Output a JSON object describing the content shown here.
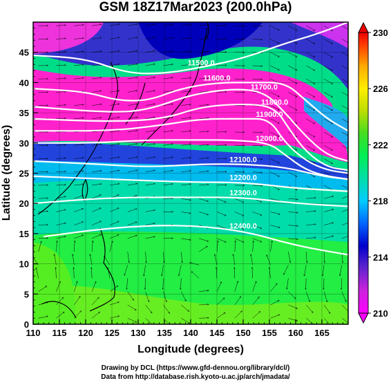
{
  "title": "GSM 18Z17Mar2023 (200.0hPa)",
  "xlabel": "Longitude (degrees)",
  "ylabel": "Latitude  (degrees)",
  "credit_line1": "Drawing by DCL (https://www.gfd-dennou.org/library/dcl/)",
  "credit_line2": "Data from http://database.rish.kyoto-u.ac.jp/arch/jmadata/",
  "chart_data": {
    "type": "heatmap",
    "description_fields": "temperature shading with geopotential height contours and wind streamlines",
    "x_ticks": [
      "110",
      "115",
      "120",
      "125",
      "130",
      "135",
      "140",
      "145",
      "150",
      "155",
      "160",
      "165"
    ],
    "y_ticks": [
      "0",
      "5",
      "10",
      "15",
      "20",
      "25",
      "30",
      "35",
      "40",
      "45"
    ],
    "xlim": [
      110,
      170
    ],
    "ylim": [
      0,
      50
    ],
    "colorbar": {
      "ticks": [
        "210",
        "214",
        "218",
        "222",
        "226",
        "230"
      ],
      "range": [
        210,
        230
      ],
      "colors": [
        "#ff00ff",
        "#ff33cc",
        "#6633cc",
        "#0000cc",
        "#0077ff",
        "#00ccff",
        "#00ddaa",
        "#00ee55",
        "#33dd33",
        "#99dd00",
        "#ffee00",
        "#ffaa00",
        "#ff5500",
        "#ee0000"
      ]
    },
    "contours": [
      {
        "label": "11500.0",
        "points": [
          [
            110,
            44.5
          ],
          [
            120,
            44
          ],
          [
            128,
            41.5
          ],
          [
            135,
            41.5
          ],
          [
            142,
            42.5
          ],
          [
            150,
            44
          ],
          [
            158,
            46.5
          ],
          [
            164,
            48
          ],
          [
            170,
            50
          ]
        ]
      },
      {
        "label": "11600.0",
        "points": [
          [
            110,
            39
          ],
          [
            120,
            38.5
          ],
          [
            126,
            37
          ],
          [
            132,
            37
          ],
          [
            138,
            39
          ],
          [
            145,
            40
          ],
          [
            152,
            40
          ],
          [
            158,
            40
          ],
          [
            162,
            37
          ],
          [
            166,
            34
          ],
          [
            170,
            32
          ]
        ]
      },
      {
        "label": "11700.0",
        "points": [
          [
            110,
            36
          ],
          [
            125,
            35
          ],
          [
            132,
            35.5
          ],
          [
            140,
            38
          ],
          [
            148,
            39
          ],
          [
            154,
            38.5
          ],
          [
            158,
            35
          ],
          [
            162,
            31
          ],
          [
            166,
            28
          ],
          [
            170,
            27
          ]
        ]
      },
      {
        "label": "11800.0",
        "points": [
          [
            110,
            34
          ],
          [
            125,
            33.5
          ],
          [
            135,
            34
          ],
          [
            142,
            36
          ],
          [
            150,
            36.5
          ],
          [
            156,
            36
          ],
          [
            159,
            32
          ],
          [
            162,
            28.5
          ],
          [
            166,
            26
          ],
          [
            170,
            25.5
          ]
        ]
      },
      {
        "label": "11900.0",
        "points": [
          [
            110,
            32
          ],
          [
            125,
            32
          ],
          [
            135,
            33
          ],
          [
            142,
            34
          ],
          [
            150,
            34
          ],
          [
            155,
            34
          ],
          [
            158,
            30
          ],
          [
            162,
            27
          ],
          [
            166,
            25.5
          ],
          [
            170,
            25
          ]
        ]
      },
      {
        "label": "12000.0",
        "points": [
          [
            110,
            30
          ],
          [
            122,
            30
          ],
          [
            132,
            30.5
          ],
          [
            140,
            30.5
          ],
          [
            148,
            30.5
          ],
          [
            155,
            30
          ],
          [
            158,
            28
          ],
          [
            162,
            25.5
          ],
          [
            166,
            24.5
          ],
          [
            170,
            24
          ]
        ]
      },
      {
        "label": "12100.0",
        "points": [
          [
            110,
            27
          ],
          [
            122,
            26.5
          ],
          [
            132,
            26
          ],
          [
            142,
            26.5
          ],
          [
            150,
            26.5
          ],
          [
            158,
            26
          ],
          [
            165,
            24.5
          ],
          [
            170,
            24
          ]
        ]
      },
      {
        "label": "12200.0",
        "points": [
          [
            110,
            24.5
          ],
          [
            125,
            24
          ],
          [
            140,
            23.5
          ],
          [
            150,
            23.5
          ],
          [
            160,
            22.5
          ],
          [
            170,
            22
          ]
        ]
      },
      {
        "label": "12300.0",
        "points": [
          [
            110,
            20
          ],
          [
            125,
            21
          ],
          [
            140,
            21
          ],
          [
            150,
            21
          ],
          [
            160,
            20
          ],
          [
            170,
            19.5
          ]
        ]
      },
      {
        "label": "12400.0",
        "points": [
          [
            112,
            14.5
          ],
          [
            125,
            16
          ],
          [
            138,
            16.5
          ],
          [
            150,
            15.5
          ],
          [
            160,
            13
          ],
          [
            170,
            11.5
          ]
        ]
      }
    ],
    "grid": true
  }
}
